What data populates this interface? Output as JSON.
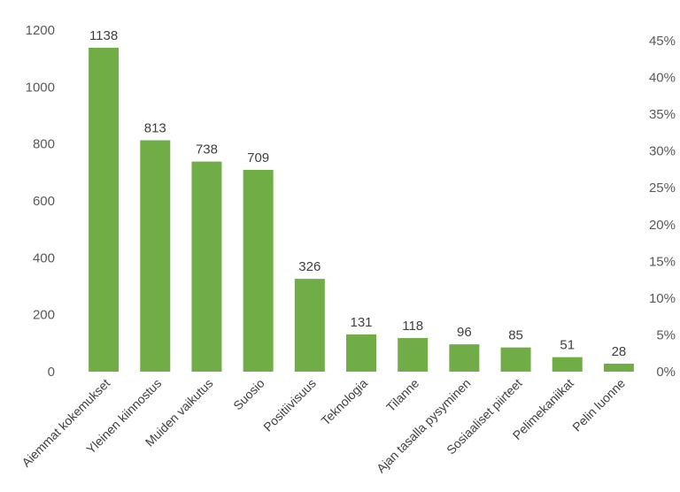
{
  "chart_data": {
    "type": "bar",
    "title": "",
    "xlabel": "",
    "ylabel": "",
    "categories": [
      "Aiemmat kokemukset",
      "Yleinen kiinnostus",
      "Muiden vaikutus",
      "Suosio",
      "Positiivisuus",
      "Teknologia",
      "Tilanne",
      "Ajan tasalla pysyminen",
      "Sosiaaliset piirteet",
      "Pelimekaniikat",
      "Pelin luonne"
    ],
    "values": [
      1138,
      813,
      738,
      709,
      326,
      131,
      118,
      96,
      85,
      51,
      28
    ],
    "data_labels": [
      "1138",
      "813",
      "738",
      "709",
      "326",
      "131",
      "118",
      "96",
      "85",
      "51",
      "28"
    ],
    "ylim": [
      0,
      1200
    ],
    "yticks": [
      0,
      200,
      400,
      600,
      800,
      1000,
      1200
    ],
    "ytick_labels": [
      "0",
      "200",
      "400",
      "600",
      "800",
      "1000",
      "1200"
    ],
    "y2lim": [
      0,
      45
    ],
    "y2ticks": [
      0,
      5,
      10,
      15,
      20,
      25,
      30,
      35,
      40,
      45
    ],
    "y2tick_labels": [
      "0%",
      "5%",
      "10%",
      "15%",
      "20%",
      "25%",
      "30%",
      "35%",
      "40%",
      "45%"
    ],
    "grid": false,
    "legend": "none",
    "bar_color": "#70AD47"
  }
}
